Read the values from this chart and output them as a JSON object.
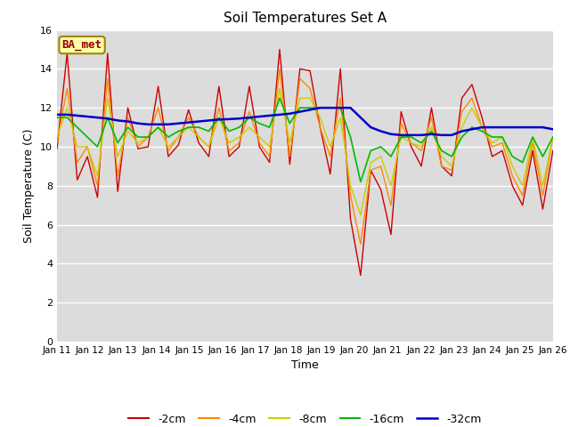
{
  "title": "Soil Temperatures Set A",
  "xlabel": "Time",
  "ylabel": "Soil Temperature (C)",
  "ylim": [
    0,
    16
  ],
  "bg_color": "#dcdcdc",
  "fig_color": "#ffffff",
  "ba_met_label": "BA_met",
  "legend_labels": [
    "-2cm",
    "-4cm",
    "-8cm",
    "-16cm",
    "-32cm"
  ],
  "line_colors": [
    "#cc0000",
    "#ff8800",
    "#cccc00",
    "#00bb00",
    "#0000cc"
  ],
  "line_widths": [
    1.0,
    1.0,
    1.0,
    1.2,
    1.8
  ],
  "x_tick_labels": [
    "Jan 11",
    "Jan 12",
    "Jan 13",
    "Jan 14",
    "Jan 15",
    "Jan 16",
    "Jan 17",
    "Jan 18",
    "Jan 19",
    "Jan 20",
    "Jan 21",
    "Jan 22",
    "Jan 23",
    "Jan 24",
    "Jan 25",
    "Jan 26"
  ],
  "n_days": 15,
  "series_2cm": [
    9.9,
    14.8,
    8.3,
    9.5,
    7.4,
    14.8,
    7.7,
    12.0,
    9.9,
    10.0,
    13.1,
    9.5,
    10.1,
    11.9,
    10.2,
    9.5,
    13.1,
    9.5,
    10.0,
    13.1,
    10.0,
    9.2,
    15.0,
    9.1,
    14.0,
    13.9,
    11.0,
    8.6,
    14.0,
    6.3,
    3.4,
    8.8,
    7.8,
    5.5,
    11.8,
    10.0,
    9.0,
    12.0,
    9.0,
    8.5,
    12.5,
    13.2,
    11.5,
    9.5,
    9.8,
    8.0,
    7.0,
    9.8,
    6.8,
    9.8
  ],
  "series_4cm": [
    10.2,
    13.0,
    9.2,
    10.0,
    8.0,
    13.5,
    8.5,
    11.5,
    10.0,
    10.5,
    12.0,
    9.8,
    10.5,
    11.5,
    10.5,
    10.0,
    12.0,
    9.8,
    10.2,
    11.8,
    10.2,
    9.5,
    14.0,
    9.5,
    13.5,
    13.0,
    11.0,
    9.5,
    12.5,
    7.5,
    5.0,
    8.8,
    9.0,
    7.0,
    11.2,
    10.2,
    9.8,
    11.5,
    9.0,
    8.8,
    11.8,
    12.5,
    11.0,
    10.0,
    10.2,
    8.5,
    7.5,
    10.2,
    7.5,
    10.5
  ],
  "series_8cm": [
    10.5,
    12.0,
    10.0,
    10.0,
    8.5,
    12.5,
    9.5,
    10.8,
    10.2,
    10.5,
    11.0,
    10.0,
    10.5,
    11.0,
    10.5,
    10.0,
    11.5,
    10.2,
    10.5,
    11.0,
    10.5,
    10.0,
    13.0,
    10.2,
    12.5,
    12.5,
    11.5,
    10.0,
    11.5,
    8.0,
    6.5,
    9.2,
    9.5,
    8.0,
    10.5,
    10.2,
    10.0,
    11.0,
    9.5,
    9.0,
    11.0,
    12.0,
    11.0,
    10.2,
    10.5,
    9.0,
    8.0,
    10.5,
    8.0,
    10.5
  ],
  "series_16cm": [
    11.5,
    11.5,
    11.0,
    10.5,
    10.0,
    11.5,
    10.2,
    11.0,
    10.5,
    10.5,
    11.0,
    10.5,
    10.8,
    11.0,
    11.0,
    10.8,
    11.5,
    10.8,
    11.0,
    11.5,
    11.2,
    11.0,
    12.5,
    11.2,
    12.0,
    12.0,
    12.0,
    12.0,
    12.0,
    10.5,
    8.2,
    9.8,
    10.0,
    9.5,
    10.5,
    10.5,
    10.2,
    10.8,
    9.8,
    9.5,
    10.5,
    11.0,
    10.8,
    10.5,
    10.5,
    9.5,
    9.2,
    10.5,
    9.5,
    10.5
  ],
  "series_32cm": [
    11.65,
    11.65,
    11.6,
    11.55,
    11.5,
    11.45,
    11.35,
    11.3,
    11.2,
    11.15,
    11.15,
    11.15,
    11.2,
    11.25,
    11.3,
    11.35,
    11.4,
    11.42,
    11.45,
    11.5,
    11.55,
    11.6,
    11.65,
    11.7,
    11.8,
    11.9,
    12.0,
    12.0,
    12.0,
    12.0,
    11.5,
    11.0,
    10.8,
    10.65,
    10.6,
    10.6,
    10.6,
    10.65,
    10.6,
    10.6,
    10.8,
    10.9,
    11.0,
    11.0,
    11.0,
    11.0,
    11.0,
    11.0,
    11.0,
    10.9
  ]
}
